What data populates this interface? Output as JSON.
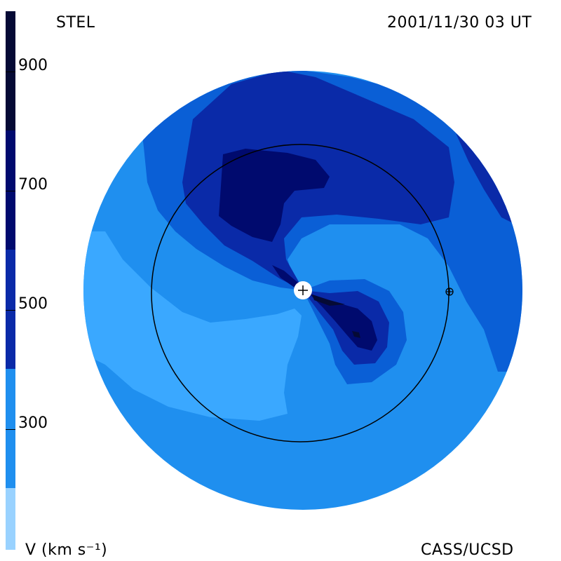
{
  "header": {
    "left_label": "STEL",
    "right_label": "2001/11/30 03 UT"
  },
  "footer": {
    "left_label": "V (km s⁻¹)",
    "right_label": "CASS/UCSD"
  },
  "colorbar": {
    "ticks": [
      "900",
      "700",
      "500",
      "300"
    ],
    "colors": [
      "#050a35",
      "#000a6e",
      "#0a2aa8",
      "#0a5fd6",
      "#1f8fef",
      "#3aa8ff",
      "#99d2ff"
    ]
  },
  "map_colors": {
    "outer": "#1f8fef",
    "slow": "#3aa8ff",
    "mid": "#0a5fd6",
    "fast": "#0a2aa8",
    "faster": "#000a6e",
    "fastest": "#050a35"
  },
  "markers": {
    "sun": "+",
    "earth": "earth-symbol"
  }
}
